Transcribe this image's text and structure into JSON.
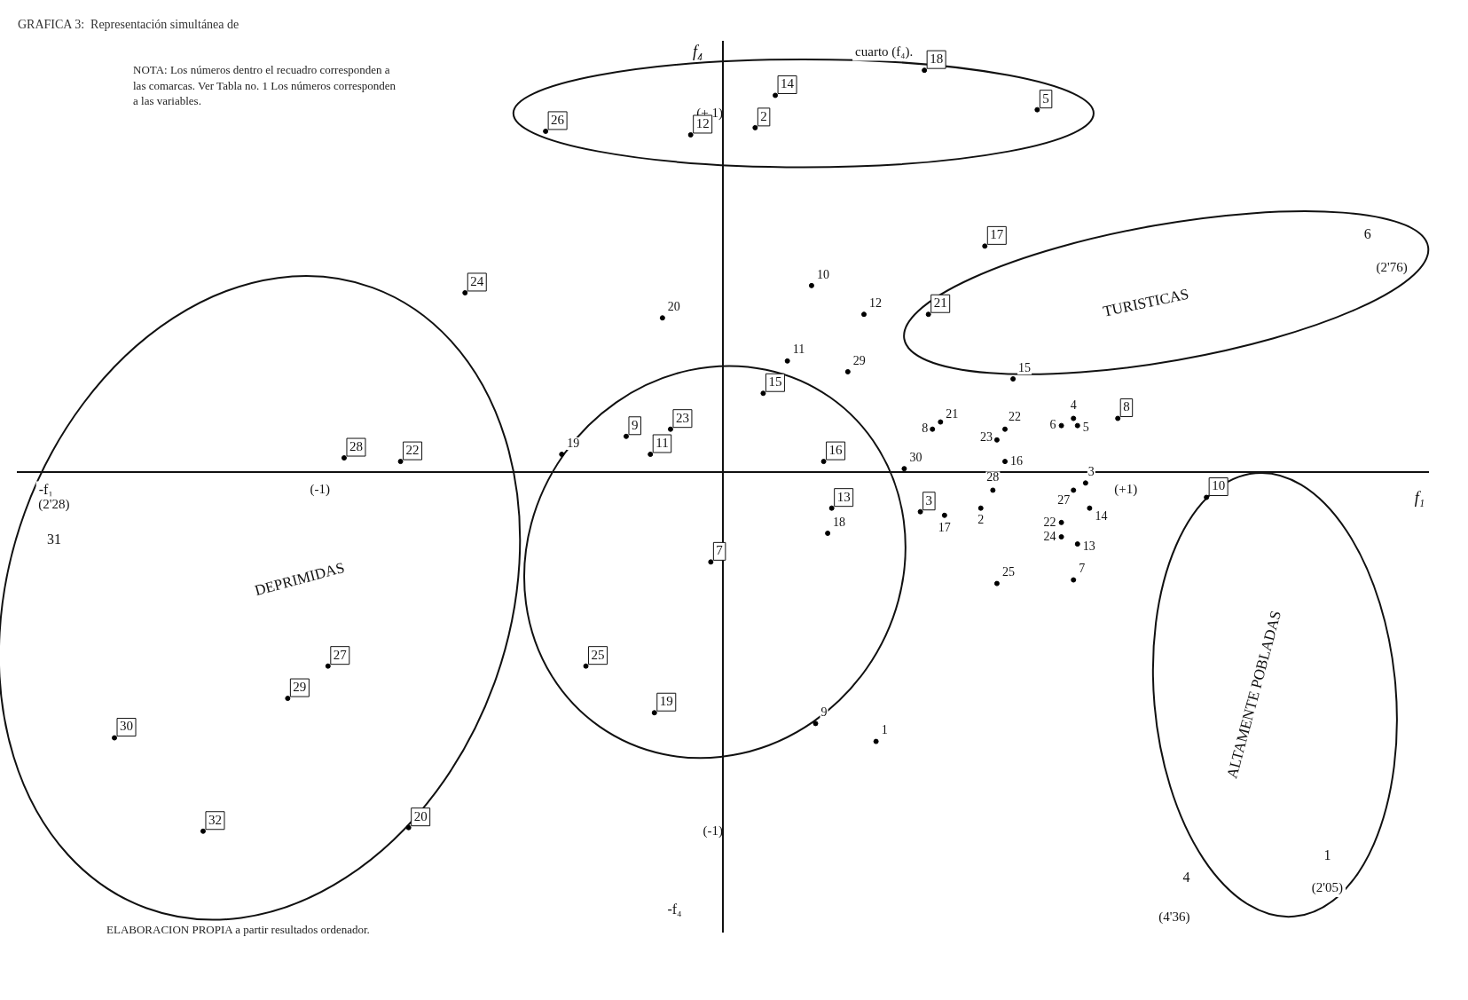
{
  "chart_data": {
    "type": "scatter",
    "title": "GRAFICA 3:  Representación simultánea de",
    "xlabel": "f₁",
    "ylabel": "f₄",
    "xlim": [
      -1.75,
      1.75
    ],
    "ylim": [
      -1.28,
      1.2
    ],
    "xticks": [
      {
        "value": -1,
        "label": "(-1)"
      },
      {
        "value": 1,
        "label": "(+1)"
      }
    ],
    "yticks": [
      {
        "value": -1,
        "label": "(-1)"
      },
      {
        "value": 1,
        "label": "(+ 1)"
      }
    ],
    "grid": false,
    "legend": false,
    "marker": "circle",
    "series": [
      {
        "color": "#000000",
        "x": [
          -0.44,
          -0.08,
          0.08,
          0.13,
          0.5,
          0.78,
          0.65,
          0.51,
          -0.64,
          -0.94,
          -0.8,
          0.1,
          -0.24,
          -0.13,
          -0.18,
          0.25,
          0.27,
          0.49,
          -0.03,
          -0.34,
          -0.17,
          -0.98,
          -1.08,
          -1.51,
          -1.29,
          -0.78,
          0.98,
          1.2
        ],
        "values": [
          0.95,
          0.94,
          0.96,
          1.05,
          1.12,
          1.01,
          0.63,
          0.44,
          0.5,
          0.04,
          0.03,
          0.22,
          0.1,
          0.12,
          0.05,
          0.03,
          -0.1,
          -0.11,
          -0.25,
          -0.54,
          -0.67,
          -0.54,
          -0.63,
          -0.74,
          -1.0,
          -0.99,
          0.15,
          -0.07
        ]
      },
      {
        "color": "#000000",
        "x": [
          0.22,
          0.35,
          -0.15,
          0.16,
          0.31,
          0.72,
          -0.4,
          0.52,
          0.54,
          0.7,
          0.68,
          0.87,
          0.84,
          0.88,
          0.7,
          0.45,
          0.67,
          0.64,
          0.55,
          0.87,
          0.9,
          0.91,
          0.84,
          0.84,
          0.88,
          0.26,
          0.68,
          0.87,
          0.23,
          0.38
        ],
        "values": [
          0.52,
          0.44,
          0.43,
          0.31,
          0.28,
          0.26,
          0.05,
          0.12,
          0.14,
          0.12,
          0.09,
          0.15,
          0.13,
          0.13,
          0.03,
          0.01,
          -0.05,
          -0.1,
          -0.12,
          -0.05,
          -0.03,
          -0.1,
          -0.14,
          -0.18,
          -0.2,
          -0.17,
          -0.31,
          -0.3,
          -0.7,
          -0.75
        ]
      }
    ],
    "annotations": [
      "NOTA: Los números dentro el recuadro corresponden a las comarcas. Ver Tabla no. 1 Los números corresponden a las variables.",
      "ELABORACION PROPIA a partir resultados ordenador.",
      "cuarto (f₄).",
      "DEPRIMIDAS",
      "TURISTICAS",
      "ALTAMENTE POBLADAS",
      "-f₁",
      "-f₄",
      "6",
      "(2'76)",
      "(2'28)",
      "31",
      "1",
      "(2'05)",
      "4",
      "(4'36)",
      {
        "text": "26",
        "x": -0.44,
        "y": 0.95
      },
      {
        "text": "12",
        "x": -0.08,
        "y": 0.94
      },
      {
        "text": "2",
        "x": 0.08,
        "y": 0.96
      },
      {
        "text": "14",
        "x": 0.13,
        "y": 1.05
      },
      {
        "text": "18",
        "x": 0.5,
        "y": 1.12
      },
      {
        "text": "5",
        "x": 0.78,
        "y": 1.01
      },
      {
        "text": "17",
        "x": 0.65,
        "y": 0.63
      },
      {
        "text": "21",
        "x": 0.51,
        "y": 0.44
      },
      {
        "text": "24",
        "x": -0.64,
        "y": 0.5
      },
      {
        "text": "28",
        "x": -0.94,
        "y": 0.04
      },
      {
        "text": "22",
        "x": -0.8,
        "y": 0.03
      },
      {
        "text": "15",
        "x": 0.1,
        "y": 0.22
      },
      {
        "text": "9",
        "x": -0.24,
        "y": 0.1
      },
      {
        "text": "23",
        "x": -0.13,
        "y": 0.12
      },
      {
        "text": "11",
        "x": -0.18,
        "y": 0.05
      },
      {
        "text": "16",
        "x": 0.25,
        "y": 0.03
      },
      {
        "text": "13",
        "x": 0.27,
        "y": -0.1
      },
      {
        "text": "3",
        "x": 0.49,
        "y": -0.11
      },
      {
        "text": "7",
        "x": -0.03,
        "y": -0.25
      },
      {
        "text": "25",
        "x": -0.34,
        "y": -0.54
      },
      {
        "text": "19",
        "x": -0.17,
        "y": -0.67
      },
      {
        "text": "27",
        "x": -0.98,
        "y": -0.54
      },
      {
        "text": "29",
        "x": -1.08,
        "y": -0.63
      },
      {
        "text": "30",
        "x": -1.51,
        "y": -0.74
      },
      {
        "text": "32",
        "x": -1.29,
        "y": -1.0
      },
      {
        "text": "20",
        "x": -0.78,
        "y": -0.99
      },
      {
        "text": "8",
        "x": 0.98,
        "y": 0.15
      },
      {
        "text": "10",
        "x": 1.2,
        "y": -0.07
      },
      {
        "text": "10",
        "x": 0.22,
        "y": 0.52
      },
      {
        "text": "12",
        "x": 0.35,
        "y": 0.44
      },
      {
        "text": "20",
        "x": -0.15,
        "y": 0.43
      },
      {
        "text": "11",
        "x": 0.16,
        "y": 0.31
      },
      {
        "text": "29",
        "x": 0.31,
        "y": 0.28
      },
      {
        "text": "15",
        "x": 0.72,
        "y": 0.26
      },
      {
        "text": "19",
        "x": -0.4,
        "y": 0.05
      },
      {
        "text": "8",
        "x": 0.52,
        "y": 0.12
      },
      {
        "text": "21",
        "x": 0.54,
        "y": 0.14
      },
      {
        "text": "22",
        "x": 0.7,
        "y": 0.12
      },
      {
        "text": "23",
        "x": 0.68,
        "y": 0.09
      },
      {
        "text": "4",
        "x": 0.87,
        "y": 0.15
      },
      {
        "text": "6",
        "x": 0.84,
        "y": 0.13
      },
      {
        "text": "5",
        "x": 0.88,
        "y": 0.13
      },
      {
        "text": "16",
        "x": 0.7,
        "y": 0.03
      },
      {
        "text": "30",
        "x": 0.45,
        "y": 0.01
      },
      {
        "text": "28",
        "x": 0.67,
        "y": -0.05
      },
      {
        "text": "2",
        "x": 0.64,
        "y": -0.1
      },
      {
        "text": "17",
        "x": 0.55,
        "y": -0.12
      },
      {
        "text": "27",
        "x": 0.87,
        "y": -0.05
      },
      {
        "text": "3",
        "x": 0.9,
        "y": -0.03
      },
      {
        "text": "14",
        "x": 0.91,
        "y": -0.1
      },
      {
        "text": "22",
        "x": 0.84,
        "y": -0.14
      },
      {
        "text": "24",
        "x": 0.84,
        "y": -0.18
      },
      {
        "text": "13",
        "x": 0.88,
        "y": -0.2
      },
      {
        "text": "18",
        "x": 0.26,
        "y": -0.17
      },
      {
        "text": "25",
        "x": 0.68,
        "y": -0.31
      },
      {
        "text": "7",
        "x": 0.87,
        "y": -0.3
      },
      {
        "text": "9",
        "x": 0.23,
        "y": -0.7
      },
      {
        "text": "1",
        "x": 0.38,
        "y": -0.75
      }
    ]
  }
}
